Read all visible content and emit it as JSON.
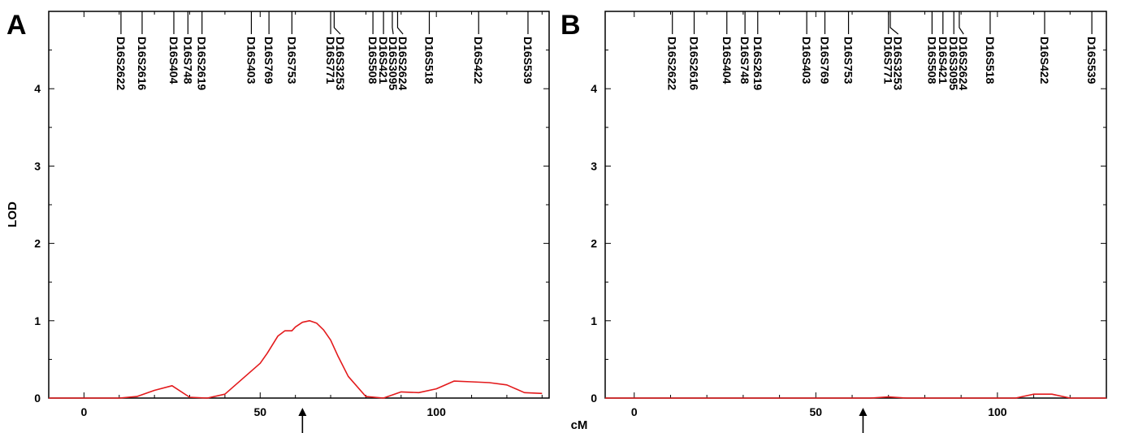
{
  "shared": {
    "x_label": "cM",
    "y_label": "LOD"
  },
  "chart_data": [
    {
      "type": "line",
      "panel_label": "A",
      "xlabel": "cM",
      "ylabel": "LOD",
      "xlim": [
        -10,
        132
      ],
      "ylim": [
        0,
        5
      ],
      "xticks": [
        0,
        50,
        100
      ],
      "yticks": [
        0,
        1,
        2,
        3,
        4
      ],
      "line_color": "#e31a1c",
      "arrow_x": 62,
      "markers": [
        {
          "name": "D16S2622",
          "pos": 10.5
        },
        {
          "name": "D16S2616",
          "pos": 16.5
        },
        {
          "name": "D16S404",
          "pos": 25.5
        },
        {
          "name": "D16S748",
          "pos": 29.5
        },
        {
          "name": "D16S2619",
          "pos": 33.5
        },
        {
          "name": "D16S403",
          "pos": 47.5
        },
        {
          "name": "D16S769",
          "pos": 52.5
        },
        {
          "name": "D16S753",
          "pos": 59
        },
        {
          "name": "D16S771",
          "pos": 70
        },
        {
          "name": "D16S3253",
          "pos": 71
        },
        {
          "name": "D16S508",
          "pos": 82
        },
        {
          "name": "D16S421",
          "pos": 85
        },
        {
          "name": "D16S3095",
          "pos": 87.5
        },
        {
          "name": "D16S2624",
          "pos": 89
        },
        {
          "name": "D16S518",
          "pos": 98
        },
        {
          "name": "D16S422",
          "pos": 112
        },
        {
          "name": "D16S539",
          "pos": 126
        }
      ],
      "series": [
        {
          "x": [
            -10,
            5,
            10,
            15,
            20,
            25,
            30,
            35,
            40,
            45,
            50,
            52,
            55,
            57,
            59,
            60,
            62,
            64,
            66,
            68,
            70,
            72,
            75,
            80,
            85,
            90,
            95,
            100,
            105,
            110,
            115,
            120,
            125,
            130
          ],
          "values": [
            0,
            0,
            0,
            0.02,
            0.1,
            0.16,
            0.01,
            0,
            0.05,
            0.25,
            0.45,
            0.58,
            0.8,
            0.87,
            0.87,
            0.92,
            0.98,
            1.0,
            0.97,
            0.88,
            0.75,
            0.55,
            0.28,
            0.02,
            0,
            0.08,
            0.07,
            0.12,
            0.22,
            0.21,
            0.2,
            0.17,
            0.07,
            0.06
          ]
        }
      ]
    },
    {
      "type": "line",
      "panel_label": "B",
      "xlabel": "",
      "ylabel": "",
      "xlim": [
        -8,
        130
      ],
      "ylim": [
        0,
        5
      ],
      "xticks": [
        0,
        50,
        100
      ],
      "yticks": [
        0,
        1,
        2,
        3,
        4
      ],
      "line_color": "#e31a1c",
      "arrow_x": 63,
      "markers": [
        {
          "name": "D16S2622",
          "pos": 10.5
        },
        {
          "name": "D16S2616",
          "pos": 16.5
        },
        {
          "name": "D16S404",
          "pos": 25.5
        },
        {
          "name": "D16S748",
          "pos": 30.5
        },
        {
          "name": "D16S2619",
          "pos": 34
        },
        {
          "name": "D16S403",
          "pos": 47.5
        },
        {
          "name": "D16S769",
          "pos": 52.5
        },
        {
          "name": "D16S753",
          "pos": 59
        },
        {
          "name": "D16S771",
          "pos": 70
        },
        {
          "name": "D16S3253",
          "pos": 70.5
        },
        {
          "name": "D16S508",
          "pos": 82
        },
        {
          "name": "D16S421",
          "pos": 85
        },
        {
          "name": "D16S3095",
          "pos": 88
        },
        {
          "name": "D16S2624",
          "pos": 89.5
        },
        {
          "name": "D16S518",
          "pos": 98
        },
        {
          "name": "D16S422",
          "pos": 113
        },
        {
          "name": "D16S539",
          "pos": 126
        }
      ],
      "series": [
        {
          "x": [
            -8,
            20,
            50,
            65,
            70,
            75,
            90,
            100,
            105,
            110,
            115,
            120,
            130
          ],
          "values": [
            0,
            0,
            0,
            0,
            0.015,
            0,
            0,
            0,
            0,
            0.05,
            0.05,
            0,
            0
          ]
        }
      ]
    }
  ]
}
